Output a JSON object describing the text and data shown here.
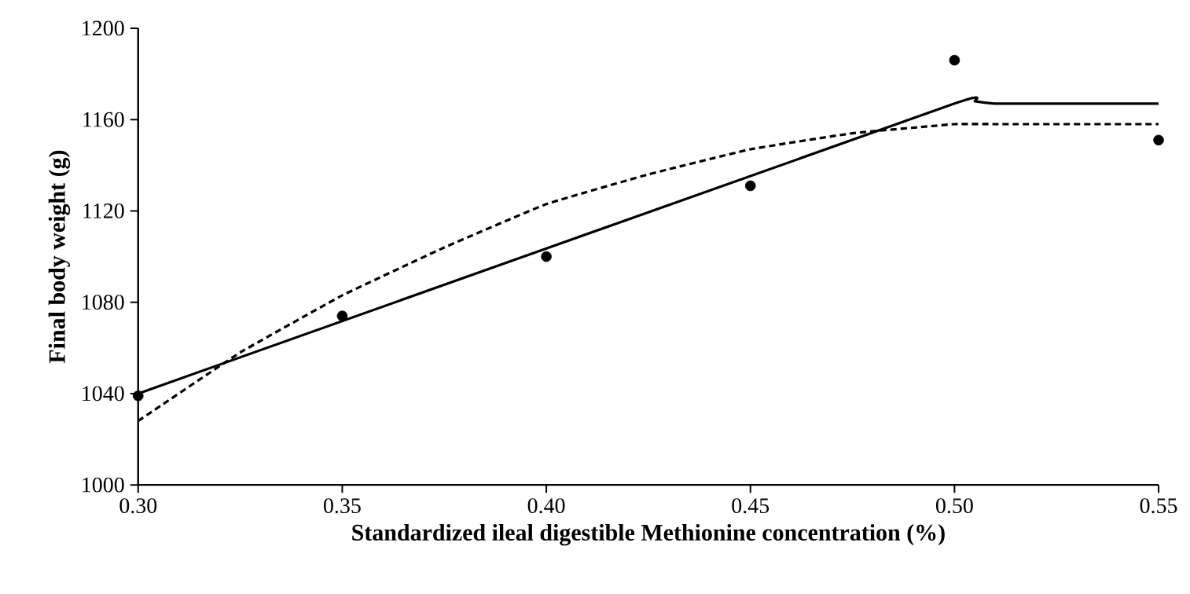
{
  "chart_data": {
    "type": "scatter",
    "xlabel": "Standardized ileal digestible Methionine concentration (%)",
    "ylabel": "Final body weight (g)",
    "xlim": [
      0.3,
      0.55
    ],
    "ylim": [
      1000,
      1200
    ],
    "xticks": [
      {
        "value": 0.3,
        "label": "0.30"
      },
      {
        "value": 0.35,
        "label": "0.35"
      },
      {
        "value": 0.4,
        "label": "0.40"
      },
      {
        "value": 0.45,
        "label": "0.45"
      },
      {
        "value": 0.5,
        "label": "0.50"
      },
      {
        "value": 0.55,
        "label": "0.55"
      }
    ],
    "yticks": [
      1000,
      1040,
      1080,
      1120,
      1160,
      1200
    ],
    "grid": false,
    "series": [
      {
        "color": "#000000",
        "marker": "circle",
        "x": [
          0.3,
          0.35,
          0.4,
          0.45,
          0.5,
          0.55
        ],
        "values": [
          1039,
          1074,
          1100,
          1131,
          1186,
          1151
        ]
      },
      {
        "type": "line",
        "color": "#000000",
        "marker": "none",
        "line_style": "solid",
        "x": [
          0.3,
          0.5,
          0.505,
          0.51,
          0.55
        ],
        "values": [
          1040,
          1167,
          1168,
          1167,
          1167
        ]
      },
      {
        "type": "line",
        "color": "#000000",
        "marker": "none",
        "line_style": "dashed",
        "x": [
          0.3,
          0.325,
          0.35,
          0.375,
          0.4,
          0.425,
          0.45,
          0.475,
          0.5,
          0.51,
          0.55
        ],
        "values": [
          1028,
          1058,
          1083,
          1104,
          1123,
          1136,
          1147,
          1154,
          1158,
          1158,
          1158
        ]
      }
    ]
  }
}
